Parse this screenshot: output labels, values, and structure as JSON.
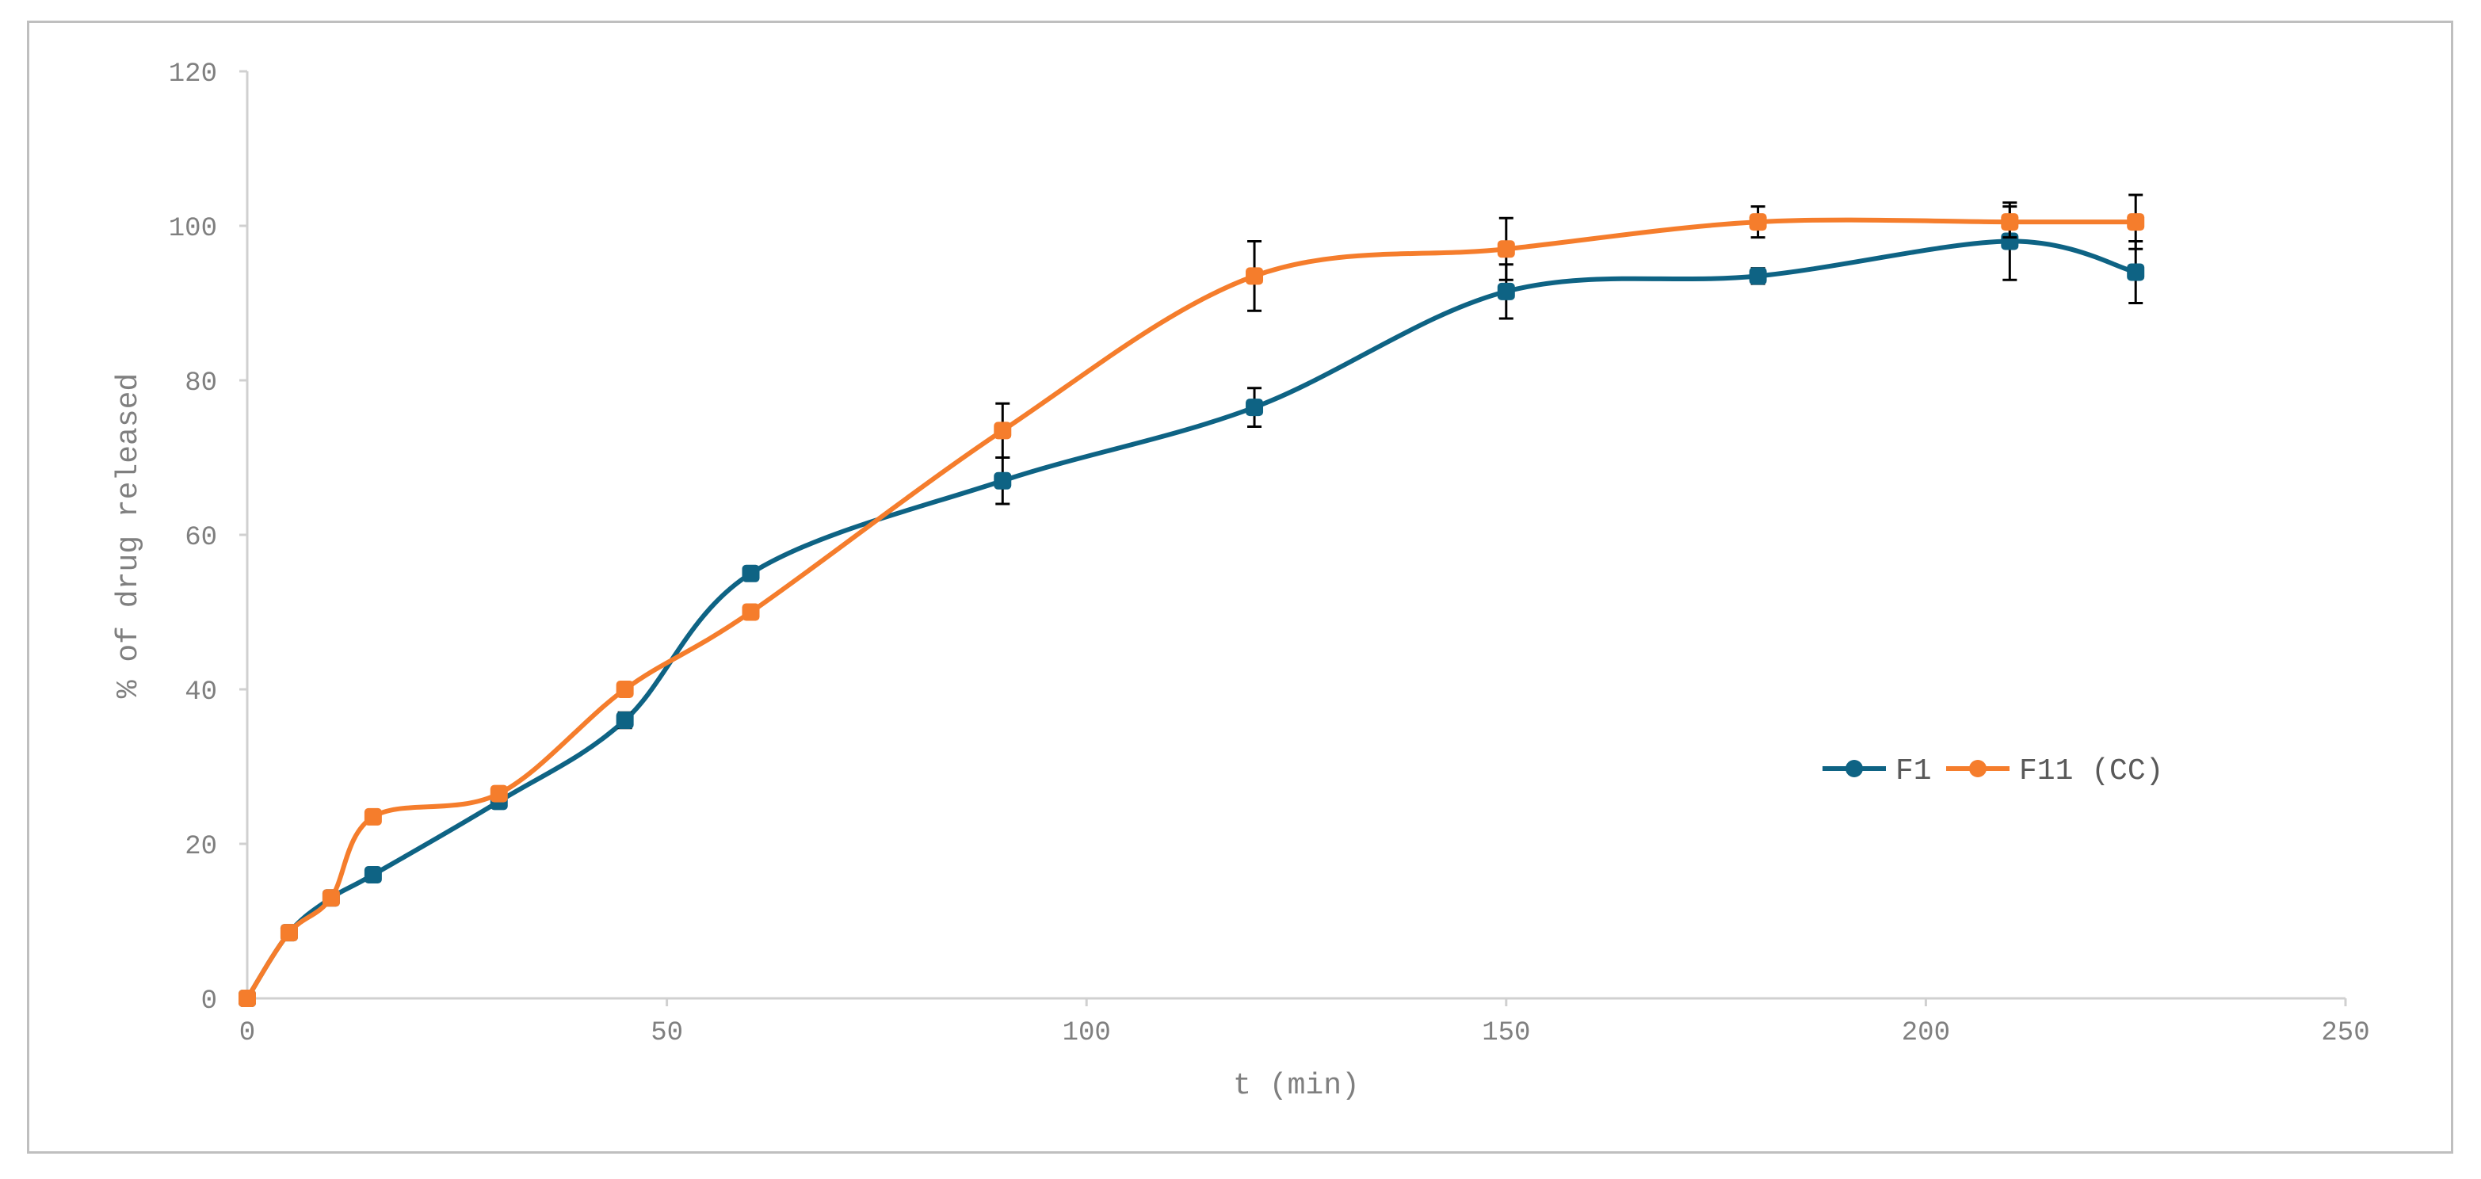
{
  "chart_data": {
    "type": "line",
    "xlabel": "t (min)",
    "ylabel": "% of drug released",
    "xlim": [
      0,
      250
    ],
    "ylim": [
      0,
      120
    ],
    "xticks": [
      0,
      50,
      100,
      150,
      200,
      250
    ],
    "yticks": [
      0,
      20,
      40,
      60,
      80,
      100,
      120
    ],
    "grid": false,
    "smooth": true,
    "legend_position": "right",
    "x": [
      0,
      5,
      10,
      15,
      30,
      45,
      60,
      90,
      120,
      150,
      180,
      210,
      225
    ],
    "series": [
      {
        "name": "F1",
        "color": "#0e6384",
        "values": [
          0,
          8.5,
          13,
          16,
          25.5,
          36,
          55,
          67,
          76.5,
          91.5,
          93.5,
          98,
          94
        ],
        "errors": [
          0,
          0.5,
          0.5,
          0.5,
          0.8,
          1.0,
          0.8,
          3.0,
          2.5,
          3.5,
          1.0,
          5.0,
          4.0
        ]
      },
      {
        "name": "F11 (CC)",
        "color": "#f57d2c",
        "values": [
          0,
          8.5,
          13,
          23.5,
          26.5,
          40,
          50,
          73.5,
          93.5,
          97,
          100.5,
          100.5,
          100.5
        ],
        "errors": [
          0,
          0.5,
          0.5,
          0.5,
          0.8,
          0.8,
          0.8,
          3.5,
          4.5,
          4.0,
          2.0,
          2.0,
          3.5
        ]
      }
    ]
  }
}
